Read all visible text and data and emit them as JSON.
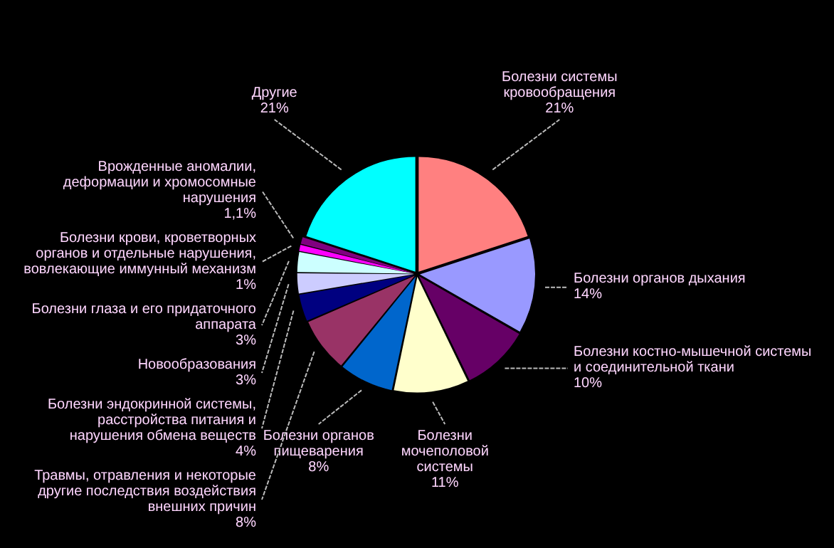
{
  "chart_data": {
    "type": "pie",
    "categories": [
      "Болезни системы кровообращения",
      "Болезни органов дыхания",
      "Болезни костно-мышечной системы и соединительной ткани",
      "Болезни мочеполовой системы",
      "Болезни органов пищеварения",
      "Травмы, отравления и некоторые другие последствия воздействия внешних причин",
      "Болезни эндокринной системы, расстройства питания и нарушения обмена веществ",
      "Новообразования",
      "Болезни глаза и его придаточного аппарата",
      "Болезни крови, кроветворных органов и отдельные нарушения, вовлекающие иммунный механизм",
      "Врожденные аномалии, деформации и хромосомные нарушения",
      "Другие"
    ],
    "values": [
      21,
      14,
      10,
      11,
      8,
      8,
      4,
      3,
      3,
      1,
      1.1,
      21
    ],
    "value_labels": [
      "21%",
      "14%",
      "10%",
      "11%",
      "8%",
      "8%",
      "4%",
      "3%",
      "3%",
      "1%",
      "1,1%",
      "21%"
    ],
    "colors": [
      "#ff8080",
      "#9999ff",
      "#660066",
      "#ffffcc",
      "#0066cc",
      "#993366",
      "#000080",
      "#ccccff",
      "#ccffff",
      "#ff00ff",
      "#800080",
      "#00ffff"
    ]
  }
}
